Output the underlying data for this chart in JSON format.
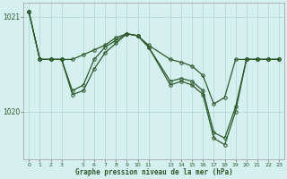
{
  "title": "Graphe pression niveau de la mer (hPa)",
  "background_color": "#d6f0f0",
  "grid_color": "#b0d4d4",
  "line_color": "#2d5a2d",
  "ylim": [
    1019.5,
    1021.15
  ],
  "xlim": [
    -0.5,
    23.5
  ],
  "y_ticks": [
    1020,
    1021
  ],
  "y_tick_labels": [
    "1020",
    "1021"
  ],
  "x_ticks": [
    0,
    1,
    2,
    3,
    5,
    6,
    7,
    8,
    9,
    10,
    11,
    13,
    14,
    15,
    16,
    17,
    18,
    19,
    20,
    21,
    22,
    23
  ],
  "series": [
    {
      "x": [
        0,
        1,
        2,
        3,
        4,
        5,
        6,
        7,
        8,
        9,
        10,
        11,
        13,
        14,
        15,
        16,
        17,
        18,
        19,
        20,
        21,
        22,
        23
      ],
      "y": [
        1021.05,
        1020.55,
        1020.55,
        1020.55,
        1020.55,
        1020.6,
        1020.65,
        1020.7,
        1020.78,
        1020.82,
        1020.8,
        1020.7,
        1020.55,
        1020.52,
        1020.48,
        1020.38,
        1020.08,
        1020.15,
        1020.55,
        1020.55,
        1020.55,
        1020.55,
        1020.55
      ]
    },
    {
      "x": [
        0,
        1,
        2,
        3,
        4,
        5,
        6,
        7,
        8,
        9,
        10,
        11,
        13,
        14,
        15,
        16,
        17,
        18,
        19,
        20,
        21,
        22,
        23
      ],
      "y": [
        1021.05,
        1020.55,
        1020.55,
        1020.55,
        1020.22,
        1020.28,
        1020.55,
        1020.68,
        1020.75,
        1020.82,
        1020.8,
        1020.68,
        1020.32,
        1020.35,
        1020.32,
        1020.22,
        1019.78,
        1019.72,
        1020.05,
        1020.55,
        1020.55,
        1020.55,
        1020.55
      ]
    },
    {
      "x": [
        0,
        1,
        2,
        3,
        4,
        5,
        6,
        7,
        8,
        9,
        10,
        11,
        13,
        14,
        15,
        16,
        17,
        18,
        19,
        20,
        21,
        22,
        23
      ],
      "y": [
        1021.05,
        1020.55,
        1020.55,
        1020.55,
        1020.18,
        1020.22,
        1020.45,
        1020.62,
        1020.72,
        1020.82,
        1020.8,
        1020.68,
        1020.28,
        1020.32,
        1020.28,
        1020.18,
        1019.72,
        1019.65,
        1020.0,
        1020.55,
        1020.55,
        1020.55,
        1020.55
      ]
    }
  ]
}
